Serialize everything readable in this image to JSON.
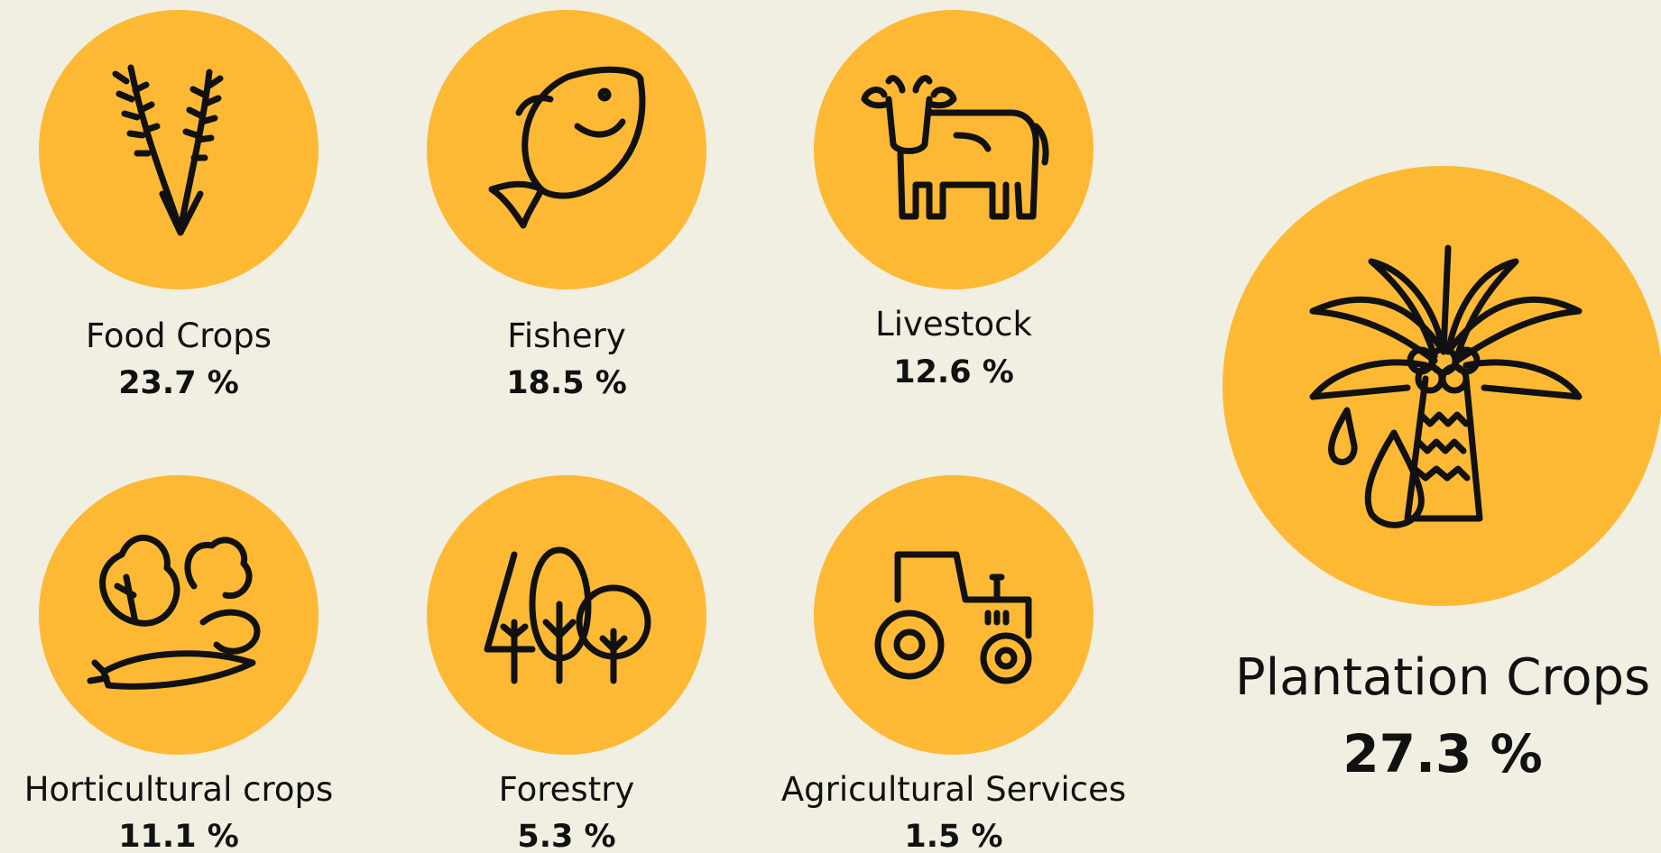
{
  "items": [
    {
      "label": "Food Crops",
      "value": "23.7 %"
    },
    {
      "label": "Fishery",
      "value": "18.5 %"
    },
    {
      "label": "Livestock",
      "value": "12.6 %"
    },
    {
      "label": "Horticultural crops",
      "value": "11.1 %"
    },
    {
      "label": "Forestry",
      "value": "5.3 %"
    },
    {
      "label": "Agricultural Services",
      "value": "1.5 %"
    }
  ],
  "featured": {
    "label": "Plantation Crops",
    "value": "27.3 %"
  }
}
